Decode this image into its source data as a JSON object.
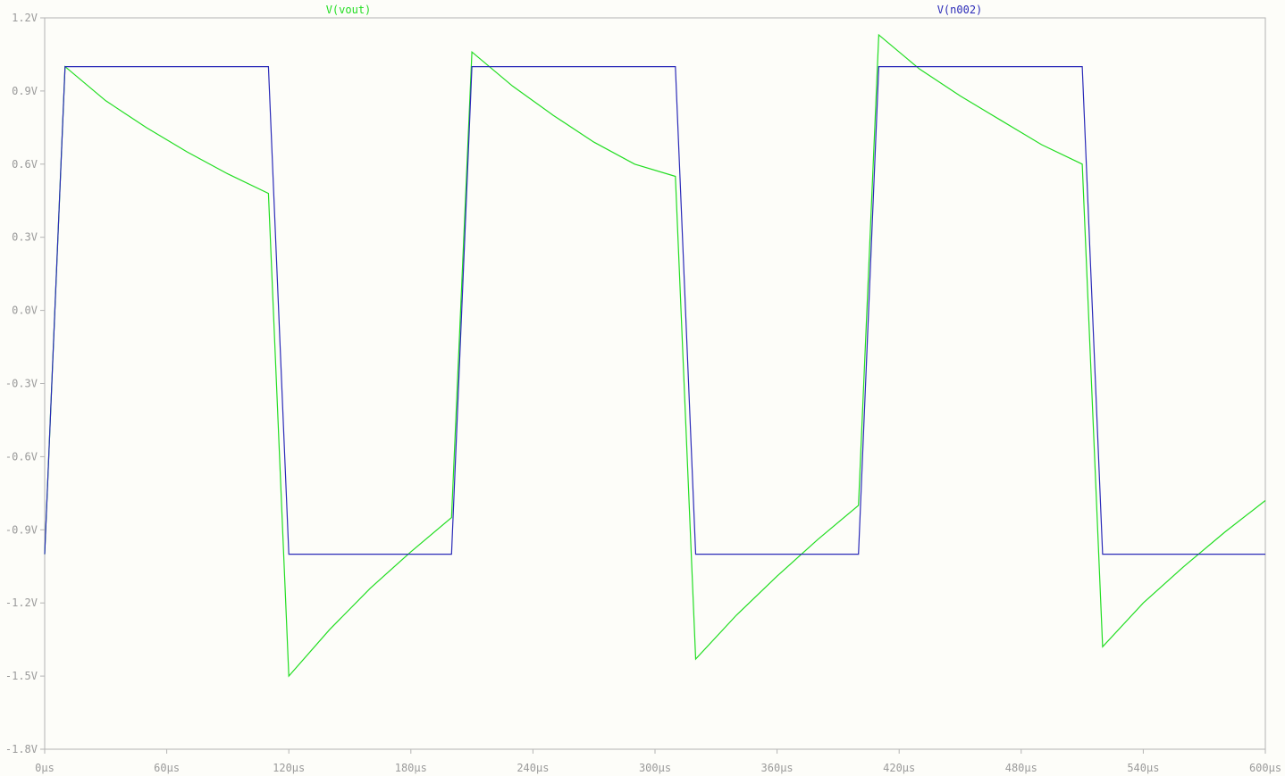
{
  "chart_data": {
    "type": "line",
    "title": "",
    "xlabel": "",
    "ylabel": "",
    "xlim": [
      0,
      600
    ],
    "ylim": [
      -1.8,
      1.2
    ],
    "x_ticks": [
      {
        "value": 0,
        "label": "0µs"
      },
      {
        "value": 60,
        "label": "60µs"
      },
      {
        "value": 120,
        "label": "120µs"
      },
      {
        "value": 180,
        "label": "180µs"
      },
      {
        "value": 240,
        "label": "240µs"
      },
      {
        "value": 300,
        "label": "300µs"
      },
      {
        "value": 360,
        "label": "360µs"
      },
      {
        "value": 420,
        "label": "420µs"
      },
      {
        "value": 480,
        "label": "480µs"
      },
      {
        "value": 540,
        "label": "540µs"
      },
      {
        "value": 600,
        "label": "600µs"
      }
    ],
    "y_ticks": [
      {
        "value": 1.2,
        "label": "1.2V"
      },
      {
        "value": 0.9,
        "label": "0.9V"
      },
      {
        "value": 0.6,
        "label": "0.6V"
      },
      {
        "value": 0.3,
        "label": "0.3V"
      },
      {
        "value": 0.0,
        "label": "0.0V"
      },
      {
        "value": -0.3,
        "label": "-0.3V"
      },
      {
        "value": -0.6,
        "label": "-0.6V"
      },
      {
        "value": -0.9,
        "label": "-0.9V"
      },
      {
        "value": -1.2,
        "label": "-1.2V"
      },
      {
        "value": -1.5,
        "label": "-1.5V"
      },
      {
        "value": -1.8,
        "label": "-1.8V"
      }
    ],
    "grid": false,
    "legend": "top",
    "series": [
      {
        "name": "V(vout)",
        "color": "#22dd22",
        "x": [
          0,
          10,
          30,
          50,
          70,
          90,
          110,
          120,
          140,
          160,
          180,
          200,
          210,
          230,
          250,
          270,
          290,
          310,
          320,
          340,
          360,
          380,
          400,
          410,
          430,
          450,
          470,
          490,
          510,
          520,
          540,
          560,
          580,
          600
        ],
        "y": [
          -1.0,
          1.0,
          0.86,
          0.75,
          0.65,
          0.56,
          0.48,
          -1.5,
          -1.31,
          -1.14,
          -0.99,
          -0.85,
          1.06,
          0.92,
          0.8,
          0.69,
          0.6,
          0.55,
          -1.43,
          -1.25,
          -1.09,
          -0.94,
          -0.8,
          1.13,
          0.99,
          0.88,
          0.78,
          0.68,
          0.6,
          -1.38,
          -1.2,
          -1.05,
          -0.91,
          -0.78
        ]
      },
      {
        "name": "V(n002)",
        "color": "#2a2ab8",
        "x": [
          0,
          10,
          110,
          120,
          200,
          210,
          310,
          320,
          400,
          410,
          510,
          520,
          600
        ],
        "y": [
          -1.0,
          1.0,
          1.0,
          -1.0,
          -1.0,
          1.0,
          1.0,
          -1.0,
          -1.0,
          1.0,
          1.0,
          -1.0,
          -1.0
        ]
      }
    ]
  }
}
